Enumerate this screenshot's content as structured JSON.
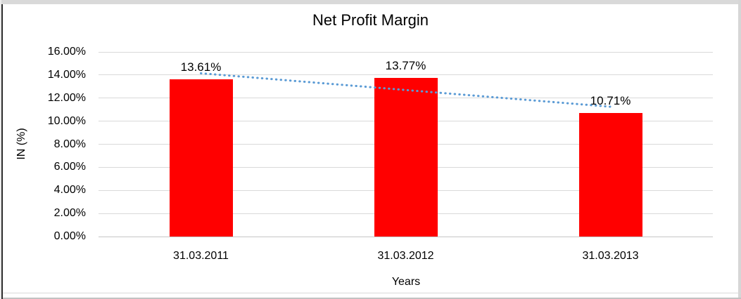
{
  "chart_data": {
    "type": "bar",
    "title": "Net Profit Margin",
    "xlabel": "Years",
    "ylabel": "IN (%)",
    "categories": [
      "31.03.2011",
      "31.03.2012",
      "31.03.2013"
    ],
    "values": [
      13.61,
      13.77,
      10.71
    ],
    "data_labels": [
      "13.61%",
      "13.77%",
      "10.71%"
    ],
    "ylim": [
      0,
      16
    ],
    "y_ticks": [
      {
        "value": 16,
        "label": "16.00%"
      },
      {
        "value": 14,
        "label": "14.00%"
      },
      {
        "value": 12,
        "label": "12.00%"
      },
      {
        "value": 10,
        "label": "10.00%"
      },
      {
        "value": 8,
        "label": "8.00%"
      },
      {
        "value": 6,
        "label": "6.00%"
      },
      {
        "value": 4,
        "label": "4.00%"
      },
      {
        "value": 2,
        "label": "2.00%"
      },
      {
        "value": 0,
        "label": "0.00%"
      }
    ],
    "grid": true,
    "legend": "none",
    "bar_color": "#FF0000",
    "text_color": "#000000",
    "gridline_color": "#d9d9d9",
    "trendline": {
      "type": "linear",
      "style": "dotted",
      "color": "#5B9BD5",
      "start_value": 14.15,
      "end_value": 11.25
    }
  }
}
